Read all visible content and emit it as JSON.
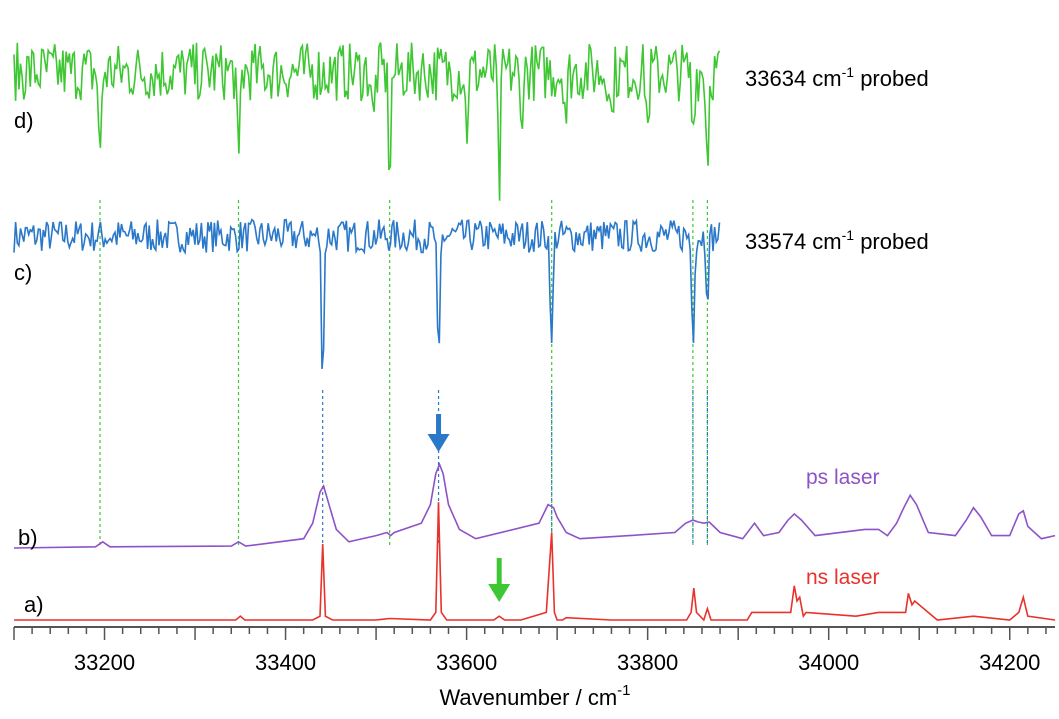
{
  "chart_data": {
    "type": "line",
    "xlabel": "Wavenumber / cm",
    "xlabel_sup": "-1",
    "xlim": [
      33100,
      34250
    ],
    "xticks": [
      "33200",
      "33400",
      "33600",
      "33800",
      "34000",
      "34200"
    ],
    "series": [
      {
        "id": "a",
        "letter": "a)",
        "name": "ns laser",
        "color": "#e8322b",
        "x": [
          33100,
          33345,
          33350,
          33355,
          33430,
          33438,
          33441,
          33444,
          33452,
          33500,
          33515,
          33560,
          33566,
          33569,
          33572,
          33578,
          33630,
          33636,
          33642,
          33660,
          33688,
          33694,
          33697,
          33700,
          33706,
          33710,
          33760,
          33843,
          33848,
          33851,
          33854,
          33862,
          33866,
          33870,
          33910,
          33915,
          33958,
          33962,
          33965,
          33968,
          33972,
          33975,
          34030,
          34055,
          34085,
          34088,
          34092,
          34095,
          34120,
          34160,
          34200,
          34210,
          34215,
          34220,
          34250
        ],
        "y": [
          0,
          0,
          0.05,
          0,
          0,
          0.05,
          1.0,
          0.05,
          0,
          0,
          0.02,
          0,
          0.1,
          1.55,
          0.1,
          0,
          0,
          0.05,
          0,
          0,
          0.1,
          1.15,
          0.1,
          0,
          0,
          0.03,
          0,
          0,
          0.1,
          0.42,
          0.1,
          0,
          0.15,
          0,
          0,
          0.1,
          0.1,
          0.45,
          0.25,
          0.3,
          0.05,
          0.1,
          0.05,
          0.1,
          0.1,
          0.35,
          0.2,
          0.25,
          0,
          0.05,
          0,
          0.1,
          0.3,
          0.05,
          0
        ]
      },
      {
        "id": "b",
        "letter": "b)",
        "name": "ps laser",
        "color": "#8e52c8",
        "x": [
          33100,
          33190,
          33198,
          33206,
          33340,
          33348,
          33356,
          33420,
          33430,
          33438,
          33442,
          33446,
          33456,
          33470,
          33500,
          33512,
          33516,
          33520,
          33550,
          33560,
          33566,
          33570,
          33574,
          33580,
          33592,
          33610,
          33680,
          33690,
          33696,
          33700,
          33710,
          33725,
          33780,
          33830,
          33842,
          33850,
          33856,
          33862,
          33868,
          33880,
          33905,
          33918,
          33928,
          33945,
          33955,
          33962,
          33970,
          33985,
          34040,
          34055,
          34065,
          34075,
          34083,
          34090,
          34097,
          34110,
          34140,
          34152,
          34160,
          34168,
          34180,
          34200,
          34210,
          34215,
          34220,
          34235,
          34250
        ],
        "y": [
          0,
          0.02,
          0.1,
          0.02,
          0.03,
          0.1,
          0.03,
          0.15,
          0.4,
          0.9,
          1.0,
          0.8,
          0.3,
          0.1,
          0.2,
          0.25,
          0.2,
          0.25,
          0.4,
          0.7,
          1.2,
          1.35,
          1.2,
          0.7,
          0.3,
          0.15,
          0.4,
          0.7,
          0.65,
          0.5,
          0.25,
          0.15,
          0.2,
          0.25,
          0.4,
          0.45,
          0.42,
          0.4,
          0.42,
          0.25,
          0.15,
          0.4,
          0.2,
          0.25,
          0.45,
          0.55,
          0.45,
          0.2,
          0.3,
          0.3,
          0.2,
          0.4,
          0.65,
          0.85,
          0.7,
          0.25,
          0.2,
          0.45,
          0.65,
          0.5,
          0.2,
          0.2,
          0.55,
          0.6,
          0.35,
          0.15,
          0.2
        ]
      },
      {
        "id": "c",
        "letter": "c)",
        "name": "33574 cm-1 probed",
        "label_main": "33574 cm",
        "label_sup": "-1",
        "label_tail": " probed",
        "color": "#2a78c9",
        "x_start": 33100,
        "x_end": 33880,
        "noise": 0.12,
        "dips": [
          [
            33441,
            1.0
          ],
          [
            33569,
            1.0
          ],
          [
            33694,
            0.85
          ],
          [
            33850,
            0.75
          ],
          [
            33866,
            0.4
          ]
        ]
      },
      {
        "id": "d",
        "letter": "d)",
        "name": "33634 cm-1 probed",
        "label_main": "33634 cm",
        "label_sup": "-1",
        "label_tail": " probed",
        "color": "#3ec733",
        "x_start": 33100,
        "x_end": 33880,
        "noise": 0.25,
        "dips": [
          [
            33195,
            0.8
          ],
          [
            33348,
            0.9
          ],
          [
            33497,
            0.5
          ],
          [
            33515,
            0.85
          ],
          [
            33600,
            0.5
          ],
          [
            33636,
            1.0
          ],
          [
            33660,
            0.45
          ],
          [
            33710,
            0.4
          ],
          [
            33760,
            0.45
          ],
          [
            33800,
            0.5
          ],
          [
            33850,
            0.5
          ],
          [
            33866,
            0.75
          ]
        ]
      }
    ],
    "guide_lines_green": [
      33195,
      33348,
      33515,
      33694,
      33850,
      33866
    ],
    "guide_lines_blue": [
      33441,
      33569,
      33694,
      33850,
      33866
    ],
    "arrows": [
      {
        "x": 33569,
        "color": "#2a78c9"
      },
      {
        "x": 33636,
        "color": "#3ec733"
      }
    ]
  }
}
